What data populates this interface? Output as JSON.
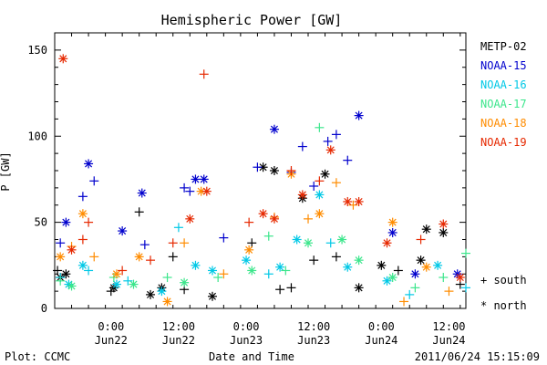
{
  "chart_data": {
    "type": "scatter",
    "title": "Hemispheric Power [GW]",
    "ylabel": "P [GW]",
    "xlabel": "Date and Time",
    "ylim": [
      0,
      160
    ],
    "xlim": [
      "2011-06-21 14:00",
      "2011-06-24 15:00"
    ],
    "y_ticks": [
      0,
      50,
      100,
      150
    ],
    "x_ticks": [
      {
        "time": "2011-06-22 00:00",
        "label1": "0:00",
        "label2": "Jun22"
      },
      {
        "time": "2011-06-22 12:00",
        "label1": "12:00",
        "label2": "Jun22"
      },
      {
        "time": "2011-06-23 00:00",
        "label1": "0:00",
        "label2": "Jun23"
      },
      {
        "time": "2011-06-23 12:00",
        "label1": "12:00",
        "label2": "Jun23"
      },
      {
        "time": "2011-06-24 00:00",
        "label1": "0:00",
        "label2": "Jun24"
      },
      {
        "time": "2011-06-24 12:00",
        "label1": "12:00",
        "label2": "Jun24"
      }
    ],
    "marker_legend": [
      {
        "symbol": "+",
        "label": "south"
      },
      {
        "symbol": "*",
        "label": "north"
      }
    ],
    "series": [
      {
        "name": "METP-02",
        "color": "#000000",
        "points": [
          [
            "2011-06-21 14:30",
            22,
            "+"
          ],
          [
            "2011-06-21 15:00",
            18,
            "*"
          ],
          [
            "2011-06-21 16:00",
            20,
            "*"
          ],
          [
            "2011-06-22 00:00",
            10,
            "+"
          ],
          [
            "2011-06-22 00:30",
            12,
            "*"
          ],
          [
            "2011-06-22 05:00",
            56,
            "+"
          ],
          [
            "2011-06-22 07:00",
            8,
            "*"
          ],
          [
            "2011-06-22 09:00",
            12,
            "*"
          ],
          [
            "2011-06-22 11:00",
            30,
            "+"
          ],
          [
            "2011-06-22 13:00",
            11,
            "+"
          ],
          [
            "2011-06-22 18:00",
            7,
            "*"
          ],
          [
            "2011-06-23 01:00",
            38,
            "+"
          ],
          [
            "2011-06-23 03:00",
            82,
            "*"
          ],
          [
            "2011-06-23 05:00",
            80,
            "*"
          ],
          [
            "2011-06-23 06:00",
            11,
            "+"
          ],
          [
            "2011-06-23 08:00",
            12,
            "+"
          ],
          [
            "2011-06-23 10:00",
            64,
            "*"
          ],
          [
            "2011-06-23 12:00",
            28,
            "+"
          ],
          [
            "2011-06-23 14:00",
            78,
            "*"
          ],
          [
            "2011-06-23 16:00",
            30,
            "+"
          ],
          [
            "2011-06-23 20:00",
            12,
            "*"
          ],
          [
            "2011-06-24 00:00",
            25,
            "*"
          ],
          [
            "2011-06-24 03:00",
            22,
            "+"
          ],
          [
            "2011-06-24 07:00",
            28,
            "*"
          ],
          [
            "2011-06-24 08:00",
            46,
            "*"
          ],
          [
            "2011-06-24 11:00",
            44,
            "*"
          ],
          [
            "2011-06-24 14:00",
            14,
            "+"
          ]
        ]
      },
      {
        "name": "NOAA-15",
        "color": "#0000cd",
        "points": [
          [
            "2011-06-21 15:00",
            38,
            "+"
          ],
          [
            "2011-06-21 16:00",
            50,
            "*"
          ],
          [
            "2011-06-21 19:00",
            65,
            "+"
          ],
          [
            "2011-06-21 20:00",
            84,
            "*"
          ],
          [
            "2011-06-21 21:00",
            74,
            "+"
          ],
          [
            "2011-06-22 02:00",
            45,
            "*"
          ],
          [
            "2011-06-22 05:30",
            67,
            "*"
          ],
          [
            "2011-06-22 06:00",
            37,
            "+"
          ],
          [
            "2011-06-22 13:00",
            70,
            "+"
          ],
          [
            "2011-06-22 14:00",
            68,
            "+"
          ],
          [
            "2011-06-22 15:00",
            75,
            "*"
          ],
          [
            "2011-06-22 16:30",
            75,
            "*"
          ],
          [
            "2011-06-22 20:00",
            41,
            "+"
          ],
          [
            "2011-06-23 02:00",
            82,
            "+"
          ],
          [
            "2011-06-23 05:00",
            104,
            "*"
          ],
          [
            "2011-06-23 08:00",
            79,
            "+"
          ],
          [
            "2011-06-23 10:00",
            94,
            "+"
          ],
          [
            "2011-06-23 12:00",
            71,
            "+"
          ],
          [
            "2011-06-23 14:30",
            97,
            "+"
          ],
          [
            "2011-06-23 16:00",
            101,
            "+"
          ],
          [
            "2011-06-23 18:00",
            86,
            "+"
          ],
          [
            "2011-06-23 20:00",
            112,
            "*"
          ],
          [
            "2011-06-24 02:00",
            44,
            "*"
          ],
          [
            "2011-06-24 06:00",
            20,
            "*"
          ],
          [
            "2011-06-24 13:30",
            20,
            "*"
          ]
        ]
      },
      {
        "name": "NOAA-16",
        "color": "#00c8e6",
        "points": [
          [
            "2011-06-21 15:00",
            18,
            "+"
          ],
          [
            "2011-06-21 16:30",
            14,
            "*"
          ],
          [
            "2011-06-21 19:00",
            25,
            "*"
          ],
          [
            "2011-06-21 20:00",
            22,
            "+"
          ],
          [
            "2011-06-22 01:00",
            14,
            "*"
          ],
          [
            "2011-06-22 03:00",
            16,
            "+"
          ],
          [
            "2011-06-22 09:00",
            10,
            "*"
          ],
          [
            "2011-06-22 12:00",
            47,
            "+"
          ],
          [
            "2011-06-22 15:00",
            25,
            "*"
          ],
          [
            "2011-06-22 18:00",
            22,
            "*"
          ],
          [
            "2011-06-23 00:00",
            28,
            "*"
          ],
          [
            "2011-06-23 04:00",
            20,
            "+"
          ],
          [
            "2011-06-23 06:00",
            24,
            "*"
          ],
          [
            "2011-06-23 09:00",
            40,
            "*"
          ],
          [
            "2011-06-23 13:00",
            66,
            "*"
          ],
          [
            "2011-06-23 15:00",
            38,
            "+"
          ],
          [
            "2011-06-23 18:00",
            24,
            "*"
          ],
          [
            "2011-06-24 01:00",
            16,
            "*"
          ],
          [
            "2011-06-24 05:00",
            8,
            "+"
          ],
          [
            "2011-06-24 10:00",
            25,
            "*"
          ],
          [
            "2011-06-24 15:00",
            12,
            "+"
          ]
        ]
      },
      {
        "name": "NOAA-17",
        "color": "#3ce68c",
        "points": [
          [
            "2011-06-21 15:00",
            16,
            "+"
          ],
          [
            "2011-06-21 17:00",
            13,
            "*"
          ],
          [
            "2011-06-22 00:30",
            18,
            "+"
          ],
          [
            "2011-06-22 04:00",
            14,
            "*"
          ],
          [
            "2011-06-22 10:00",
            18,
            "+"
          ],
          [
            "2011-06-22 13:00",
            15,
            "*"
          ],
          [
            "2011-06-22 19:00",
            18,
            "+"
          ],
          [
            "2011-06-23 01:00",
            22,
            "*"
          ],
          [
            "2011-06-23 04:00",
            42,
            "+"
          ],
          [
            "2011-06-23 07:00",
            22,
            "+"
          ],
          [
            "2011-06-23 11:00",
            38,
            "*"
          ],
          [
            "2011-06-23 13:00",
            105,
            "+"
          ],
          [
            "2011-06-23 17:00",
            40,
            "*"
          ],
          [
            "2011-06-23 20:00",
            28,
            "*"
          ],
          [
            "2011-06-24 02:00",
            18,
            "*"
          ],
          [
            "2011-06-24 06:00",
            12,
            "+"
          ],
          [
            "2011-06-24 11:00",
            18,
            "+"
          ],
          [
            "2011-06-24 15:00",
            32,
            "+"
          ]
        ]
      },
      {
        "name": "NOAA-18",
        "color": "#ff8c00",
        "points": [
          [
            "2011-06-21 15:00",
            30,
            "*"
          ],
          [
            "2011-06-21 17:00",
            36,
            "+"
          ],
          [
            "2011-06-21 19:00",
            55,
            "*"
          ],
          [
            "2011-06-21 21:00",
            30,
            "+"
          ],
          [
            "2011-06-22 01:00",
            20,
            "*"
          ],
          [
            "2011-06-22 05:00",
            30,
            "*"
          ],
          [
            "2011-06-22 10:00",
            4,
            "*"
          ],
          [
            "2011-06-22 13:00",
            38,
            "+"
          ],
          [
            "2011-06-22 16:00",
            68,
            "*"
          ],
          [
            "2011-06-22 20:00",
            20,
            "+"
          ],
          [
            "2011-06-23 00:30",
            34,
            "*"
          ],
          [
            "2011-06-23 05:00",
            53,
            "+"
          ],
          [
            "2011-06-23 08:00",
            78,
            "*"
          ],
          [
            "2011-06-23 11:00",
            52,
            "+"
          ],
          [
            "2011-06-23 13:00",
            55,
            "*"
          ],
          [
            "2011-06-23 16:00",
            73,
            "+"
          ],
          [
            "2011-06-23 19:00",
            60,
            "+"
          ],
          [
            "2011-06-24 02:00",
            50,
            "*"
          ],
          [
            "2011-06-24 04:00",
            4,
            "+"
          ],
          [
            "2011-06-24 08:00",
            24,
            "*"
          ],
          [
            "2011-06-24 12:00",
            10,
            "+"
          ]
        ]
      },
      {
        "name": "NOAA-19",
        "color": "#e62800",
        "points": [
          [
            "2011-06-21 15:30",
            145,
            "*"
          ],
          [
            "2011-06-21 17:00",
            34,
            "*"
          ],
          [
            "2011-06-21 19:00",
            40,
            "+"
          ],
          [
            "2011-06-21 20:00",
            50,
            "+"
          ],
          [
            "2011-06-22 02:00",
            22,
            "+"
          ],
          [
            "2011-06-22 07:00",
            28,
            "+"
          ],
          [
            "2011-06-22 11:00",
            38,
            "+"
          ],
          [
            "2011-06-22 14:00",
            52,
            "*"
          ],
          [
            "2011-06-22 16:30",
            136,
            "+"
          ],
          [
            "2011-06-22 17:00",
            68,
            "*"
          ],
          [
            "2011-06-23 00:30",
            50,
            "+"
          ],
          [
            "2011-06-23 03:00",
            55,
            "*"
          ],
          [
            "2011-06-23 05:00",
            52,
            "*"
          ],
          [
            "2011-06-23 08:00",
            80,
            "+"
          ],
          [
            "2011-06-23 10:00",
            66,
            "*"
          ],
          [
            "2011-06-23 13:00",
            74,
            "+"
          ],
          [
            "2011-06-23 15:00",
            92,
            "*"
          ],
          [
            "2011-06-23 18:00",
            62,
            "*"
          ],
          [
            "2011-06-23 20:00",
            62,
            "*"
          ],
          [
            "2011-06-24 01:00",
            38,
            "*"
          ],
          [
            "2011-06-24 07:00",
            40,
            "+"
          ],
          [
            "2011-06-24 11:00",
            49,
            "*"
          ],
          [
            "2011-06-24 14:00",
            18,
            "*"
          ]
        ]
      }
    ]
  },
  "footer": {
    "left": "Plot: CCMC",
    "center": "Date and Time",
    "right": "2011/06/24 15:15:09"
  }
}
